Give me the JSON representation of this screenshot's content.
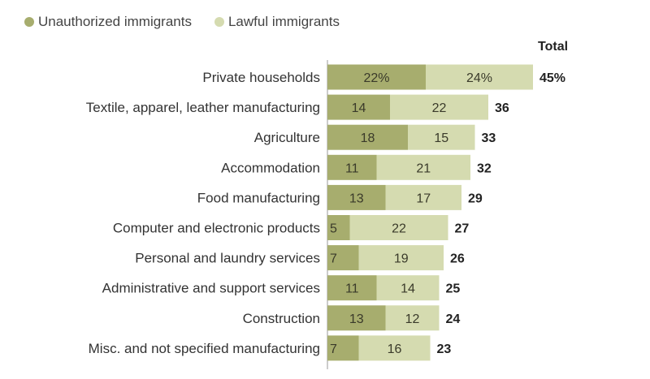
{
  "legend": {
    "unauthorized": "Unauthorized immigrants",
    "lawful": "Lawful immigrants"
  },
  "total_header": "Total",
  "colors": {
    "unauthorized": "#a7ad6e",
    "lawful": "#d5dbb0",
    "axis": "#9a9a9a",
    "text": "#333333"
  },
  "chart_data": {
    "type": "bar",
    "orientation": "horizontal",
    "stacked": true,
    "categories": [
      "Private households",
      "Textile, apparel, leather manufacturing",
      "Agriculture",
      "Accommodation",
      "Food manufacturing",
      "Computer and electronic products",
      "Personal and laundry services",
      "Administrative and support services",
      "Construction",
      "Misc. and not specified manufacturing"
    ],
    "series": [
      {
        "name": "Unauthorized immigrants",
        "values": [
          22,
          14,
          18,
          11,
          13,
          5,
          7,
          11,
          13,
          7
        ],
        "labels": [
          "22%",
          "14",
          "18",
          "11",
          "13",
          "5",
          "7",
          "11",
          "13",
          "7"
        ]
      },
      {
        "name": "Lawful immigrants",
        "values": [
          24,
          22,
          15,
          21,
          17,
          22,
          19,
          14,
          12,
          16
        ],
        "labels": [
          "24%",
          "22",
          "15",
          "21",
          "17",
          "22",
          "19",
          "14",
          "12",
          "16"
        ]
      }
    ],
    "totals": [
      45,
      36,
      33,
      32,
      29,
      27,
      26,
      25,
      24,
      23
    ],
    "total_labels": [
      "45%",
      "36",
      "33",
      "32",
      "29",
      "27",
      "26",
      "25",
      "24",
      "23"
    ],
    "legend_position": "top-left",
    "grid": false
  }
}
